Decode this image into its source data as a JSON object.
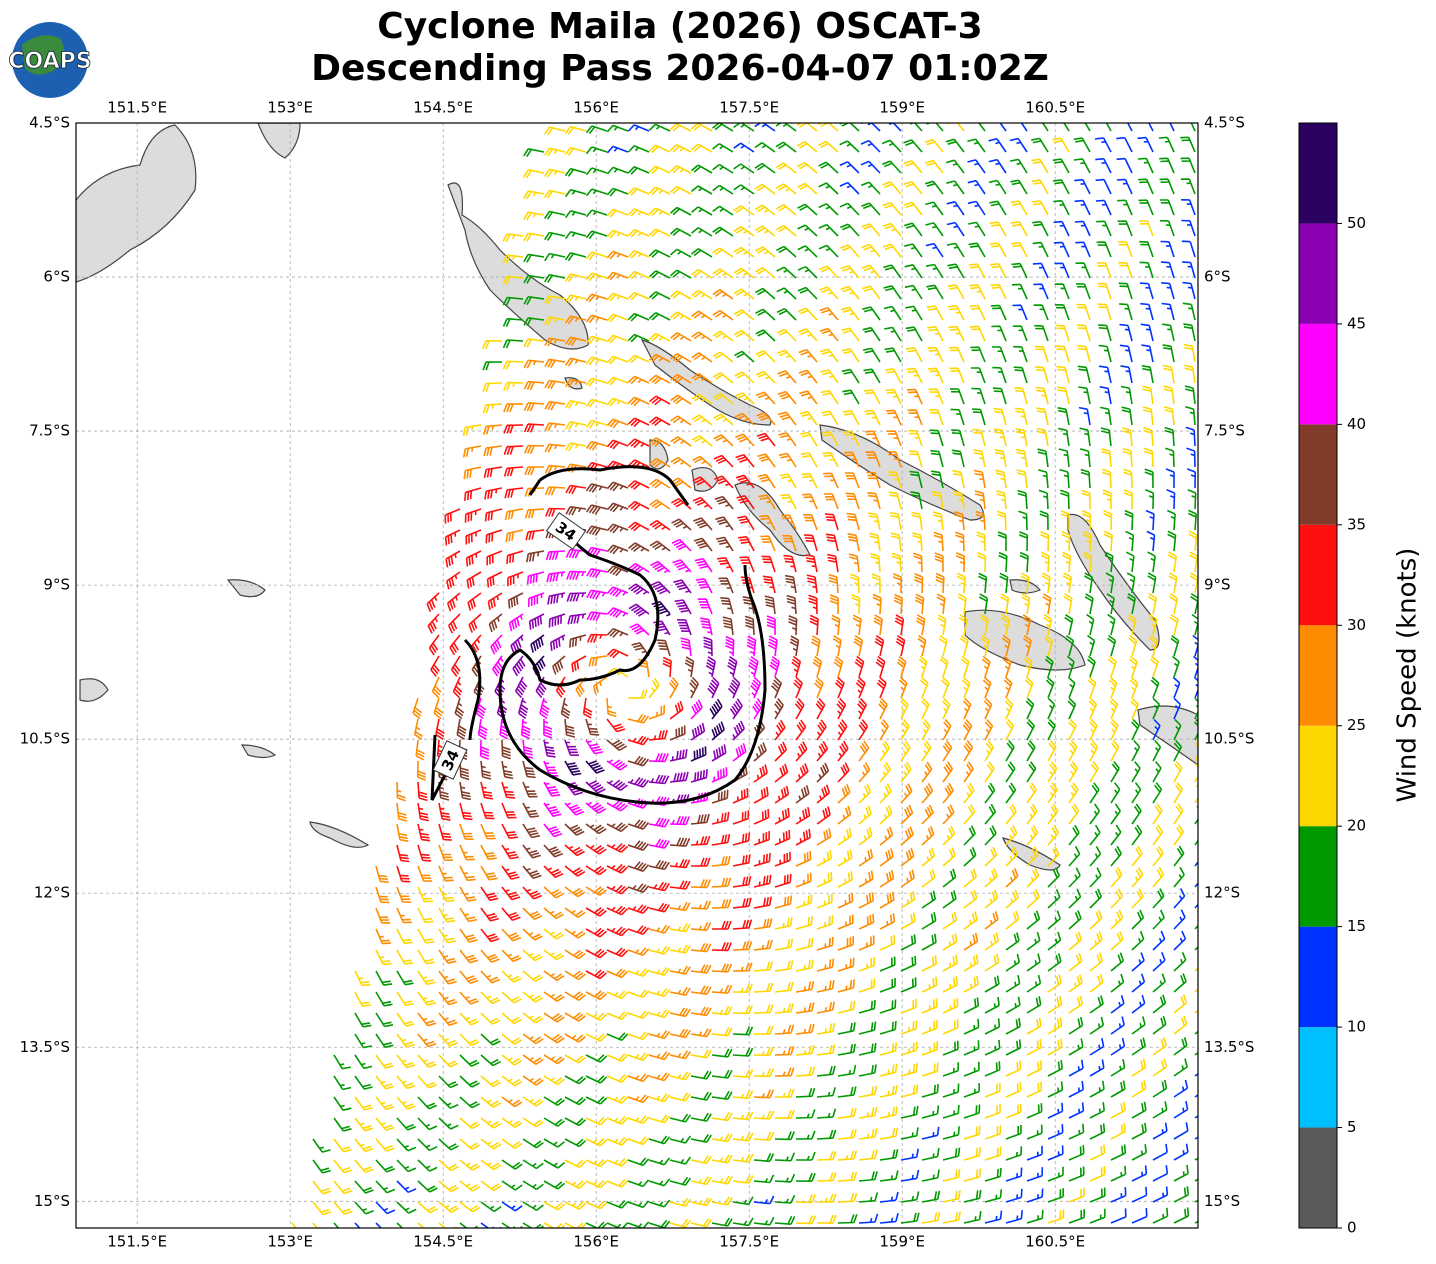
{
  "logo": "COAPS",
  "chart_data": {
    "type": "wind-barb-map",
    "title": "Cyclone Maila (2026) OSCAT-3",
    "subtitle": "Descending Pass 2026-04-07 01:02Z",
    "xlim": [
      150.9,
      161.9
    ],
    "ylim": [
      -4.5,
      -15.26
    ],
    "xticks": [
      {
        "value": 151.5,
        "label": "151.5°E"
      },
      {
        "value": 153,
        "label": "153°E"
      },
      {
        "value": 154.5,
        "label": "154.5°E"
      },
      {
        "value": 156,
        "label": "156°E"
      },
      {
        "value": 157.5,
        "label": "157.5°E"
      },
      {
        "value": 159,
        "label": "159°E"
      },
      {
        "value": 160.5,
        "label": "160.5°E"
      }
    ],
    "yticks": [
      {
        "value": -4.5,
        "label": "4.5°S"
      },
      {
        "value": -6,
        "label": "6°S"
      },
      {
        "value": -7.5,
        "label": "7.5°S"
      },
      {
        "value": -9,
        "label": "9°S"
      },
      {
        "value": -10.5,
        "label": "10.5°S"
      },
      {
        "value": -12,
        "label": "12°S"
      },
      {
        "value": -13.5,
        "label": "13.5°S"
      },
      {
        "value": -15,
        "label": "15°S"
      }
    ],
    "grid": true,
    "contour_level": 34,
    "colorbar": {
      "label": "Wind Speed (knots)",
      "lim": [
        0,
        55
      ],
      "ticks": [
        0,
        5,
        10,
        15,
        20,
        25,
        30,
        35,
        40,
        45,
        50
      ],
      "colors": [
        "#5a5a5a",
        "#00bfff",
        "#0033ff",
        "#009900",
        "#ffd700",
        "#ff8c00",
        "#ff1010",
        "#803c28",
        "#ff00ff",
        "#8b00b0",
        "#2a0060"
      ]
    }
  }
}
